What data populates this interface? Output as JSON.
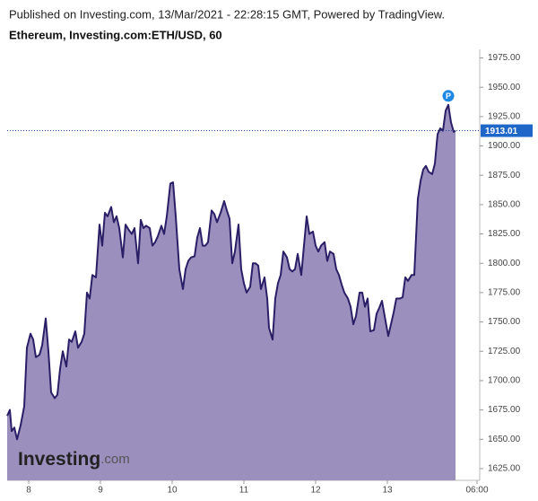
{
  "header": {
    "published": "Published on Investing.com, 13/Mar/2021 - 22:28:15 GMT, Powered by TradingView."
  },
  "chart_data": {
    "type": "area",
    "title": "Ethereum, Investing.com:ETH/USD, 60",
    "line_color": "#2a1f66",
    "fill_color": "#9a8fbd",
    "x": [
      7.7,
      7.7375,
      7.7625,
      7.8,
      7.8375,
      7.8875,
      7.9375,
      7.975,
      8.025,
      8.0625,
      8.1,
      8.15,
      8.1875,
      8.2375,
      8.275,
      8.3125,
      8.3625,
      8.4,
      8.4375,
      8.475,
      8.525,
      8.5625,
      8.6,
      8.65,
      8.6875,
      8.7375,
      8.775,
      8.8125,
      8.85,
      8.8875,
      8.9375,
      8.9875,
      9.025,
      9.0625,
      9.1,
      9.15,
      9.1875,
      9.225,
      9.2625,
      9.3125,
      9.35,
      9.4,
      9.4375,
      9.475,
      9.525,
      9.5625,
      9.6,
      9.6375,
      9.6875,
      9.725,
      9.7625,
      9.8,
      9.85,
      9.8875,
      9.925,
      9.975,
      10.0125,
      10.05,
      10.1,
      10.15,
      10.1875,
      10.225,
      10.2625,
      10.3125,
      10.35,
      10.3875,
      10.425,
      10.4625,
      10.5,
      10.55,
      10.5875,
      10.625,
      10.675,
      10.725,
      10.7625,
      10.8,
      10.8375,
      10.875,
      10.925,
      10.9625,
      11,
      11.0375,
      11.0875,
      11.125,
      11.1625,
      11.2,
      11.2375,
      11.2875,
      11.325,
      11.35,
      11.4,
      11.4375,
      11.475,
      11.5125,
      11.55,
      11.6,
      11.6375,
      11.675,
      11.7125,
      11.75,
      11.8,
      11.8375,
      11.875,
      11.9125,
      11.9625,
      12,
      12.0375,
      12.075,
      12.125,
      12.1625,
      12.2,
      12.25,
      12.2875,
      12.325,
      12.3625,
      12.4,
      12.45,
      12.4875,
      12.525,
      12.5625,
      12.6125,
      12.65,
      12.6875,
      12.725,
      12.7625,
      12.8125,
      12.85,
      12.8875,
      12.925,
      12.9625,
      13.0125,
      13.05,
      13.0875,
      13.125,
      13.175,
      13.2125,
      13.25,
      13.2875,
      13.3375,
      13.375,
      13.425,
      13.4625,
      13.5,
      13.5375,
      13.575,
      13.625,
      13.6625,
      13.7,
      13.7375,
      13.775,
      13.8125,
      13.85,
      13.8875,
      13.925,
      13.95
    ],
    "values": [
      1670,
      1675,
      1657,
      1660,
      1650,
      1662,
      1678,
      1728,
      1740,
      1735,
      1720,
      1722,
      1730,
      1753,
      1725,
      1690,
      1685,
      1688,
      1710,
      1725,
      1712,
      1735,
      1733,
      1742,
      1728,
      1733,
      1740,
      1775,
      1770,
      1790,
      1788,
      1833,
      1815,
      1843,
      1840,
      1848,
      1835,
      1840,
      1830,
      1805,
      1833,
      1828,
      1825,
      1830,
      1800,
      1837,
      1830,
      1832,
      1830,
      1815,
      1818,
      1823,
      1832,
      1825,
      1840,
      1868,
      1869,
      1840,
      1795,
      1778,
      1795,
      1802,
      1805,
      1806,
      1822,
      1830,
      1815,
      1815,
      1818,
      1845,
      1842,
      1835,
      1843,
      1853,
      1845,
      1838,
      1800,
      1810,
      1833,
      1795,
      1783,
      1775,
      1780,
      1800,
      1800,
      1798,
      1778,
      1788,
      1770,
      1745,
      1735,
      1770,
      1783,
      1790,
      1810,
      1805,
      1795,
      1793,
      1795,
      1808,
      1790,
      1815,
      1840,
      1825,
      1827,
      1815,
      1810,
      1815,
      1818,
      1802,
      1810,
      1808,
      1795,
      1790,
      1782,
      1775,
      1770,
      1763,
      1748,
      1755,
      1775,
      1775,
      1763,
      1770,
      1742,
      1743,
      1757,
      1762,
      1768,
      1755,
      1738,
      1748,
      1758,
      1770,
      1770,
      1771,
      1788,
      1785,
      1790,
      1790,
      1855,
      1870,
      1880,
      1883,
      1878,
      1876,
      1885,
      1910,
      1915,
      1913,
      1930,
      1935,
      1920,
      1912,
      1913.01
    ],
    "xlim": [
      7.7,
      14.2875
    ],
    "xticks": [
      8,
      9,
      10,
      11,
      12,
      13,
      {
        "value": 14.25,
        "label": "06:00"
      }
    ],
    "ylim": [
      1615,
      1980
    ],
    "yticks": [
      {
        "value": 1625,
        "label": "1625.00"
      },
      {
        "value": 1650,
        "label": "1650.00"
      },
      {
        "value": 1675,
        "label": "1675.00"
      },
      {
        "value": 1700,
        "label": "1700.00"
      },
      {
        "value": 1725,
        "label": "1725.00"
      },
      {
        "value": 1750,
        "label": "1750.00"
      },
      {
        "value": 1775,
        "label": "1775.00"
      },
      {
        "value": 1800,
        "label": "1800.00"
      },
      {
        "value": 1825,
        "label": "1825.00"
      },
      {
        "value": 1850,
        "label": "1850.00"
      },
      {
        "value": 1875,
        "label": "1875.00"
      },
      {
        "value": 1900,
        "label": "1900.00"
      },
      {
        "value": 1925,
        "label": "1925.00"
      },
      {
        "value": 1950,
        "label": "1950.00"
      },
      {
        "value": 1975,
        "label": "1975.00"
      }
    ],
    "last_price": 1913.01,
    "annotations": [
      {
        "text": "P"
      }
    ],
    "logo": {
      "name": "Investing",
      "suffix": ".com"
    }
  }
}
